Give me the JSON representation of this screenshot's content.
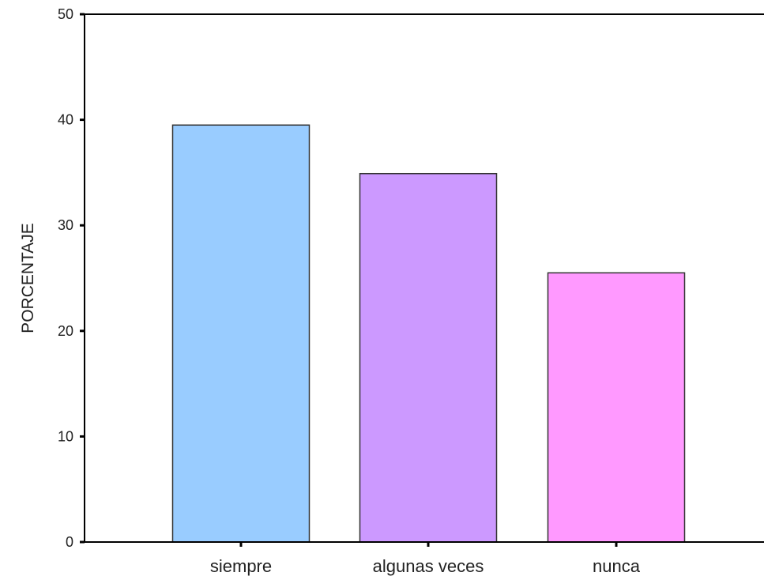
{
  "chart_data": {
    "type": "bar",
    "title": "",
    "xlabel": "",
    "ylabel": "PORCENTAJE",
    "categories": [
      "siempre",
      "algunas veces",
      "nunca"
    ],
    "values": [
      39.5,
      34.9,
      25.5
    ],
    "ylim": [
      0,
      50
    ],
    "yticks": [
      0,
      10,
      20,
      30,
      40,
      50
    ],
    "grid": false,
    "bar_colors": [
      "#99ccff",
      "#cc99ff",
      "#ff99ff"
    ],
    "bar_edge_color": "#333333"
  }
}
